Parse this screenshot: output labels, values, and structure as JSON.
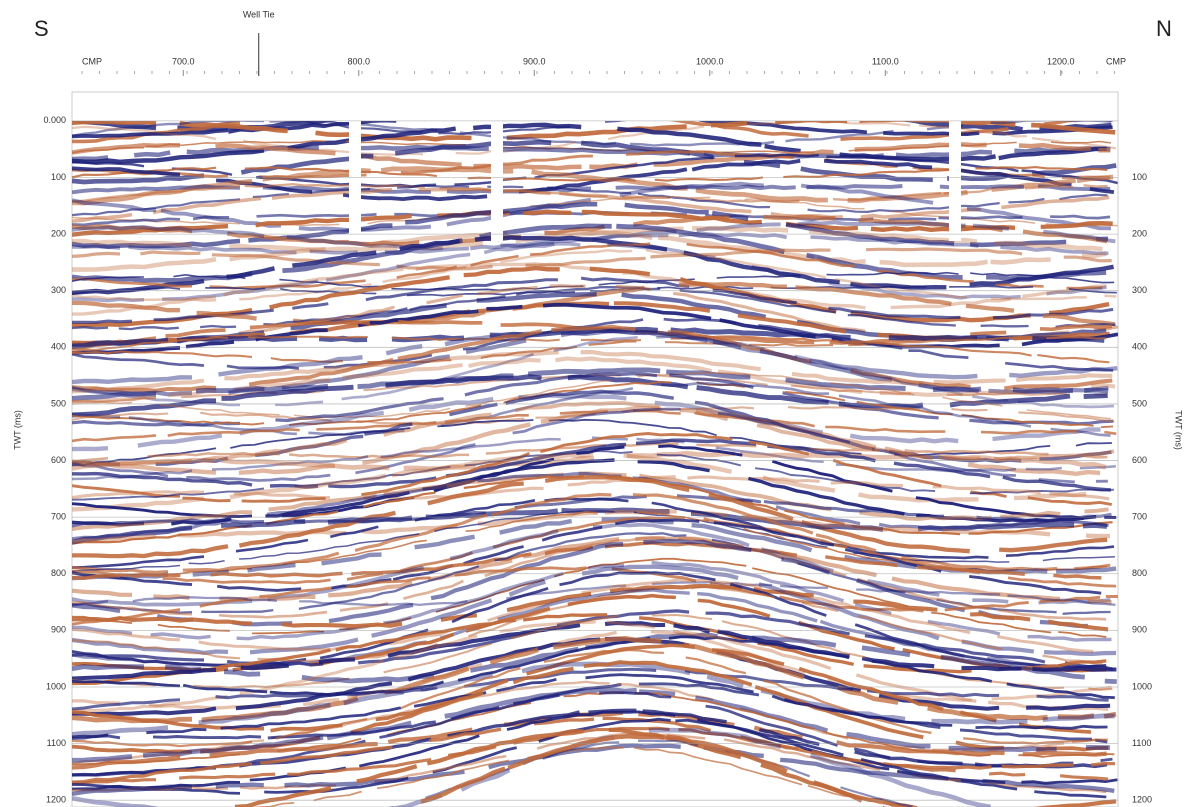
{
  "chart_data": {
    "type": "seismic",
    "left_label": "S",
    "right_label": "N",
    "xlabel": "CMP",
    "ylabel": "TWT (ms)",
    "xlim": [
      636.6,
      1232.6
    ],
    "xticks": [
      {
        "value": 700,
        "label": "700.0"
      },
      {
        "value": 800,
        "label": "800.0"
      },
      {
        "value": 900,
        "label": "900.0"
      },
      {
        "value": 1000,
        "label": "1000.0"
      },
      {
        "value": 1100,
        "label": "1100.0"
      },
      {
        "value": 1200,
        "label": "1200.0"
      }
    ],
    "ylim": [
      -51,
      1212
    ],
    "yticks": [
      {
        "value": 0,
        "label": "0.000"
      },
      100,
      200,
      300,
      400,
      500,
      600,
      700,
      800,
      900,
      1000,
      1100,
      1200
    ],
    "y2lim": [
      -51,
      1212
    ],
    "y2ticks": [
      100,
      200,
      300,
      400,
      500,
      600,
      700,
      800,
      900,
      1000,
      1100,
      1200
    ],
    "grid": true,
    "well_tie": {
      "label": "Well Tie",
      "x": 743
    },
    "colors": {
      "trough": "#1c1f78",
      "peak": "#c0693a"
    }
  }
}
